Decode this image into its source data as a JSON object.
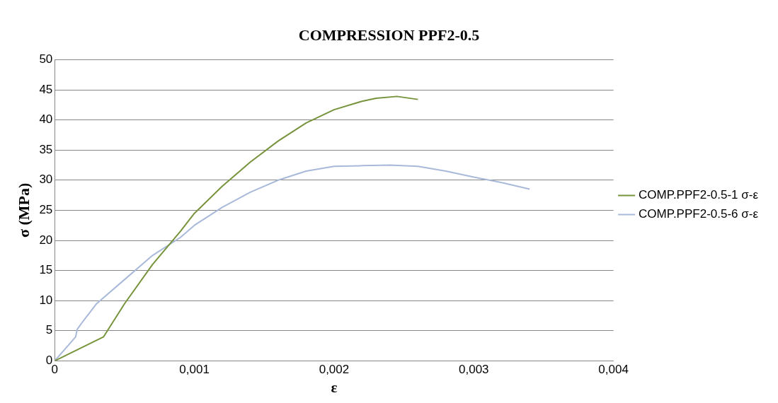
{
  "chart_data": {
    "type": "line",
    "title": "COMPRESSION PPF2-0.5",
    "xlabel": "ε",
    "ylabel": "σ (MPa)",
    "series": [
      {
        "name": "COMP.PPF2-0.5-1 σ-ε",
        "color": "#77933c",
        "x": [
          0,
          0.00035,
          0.0005,
          0.0007,
          0.0009,
          0.001,
          0.0012,
          0.0014,
          0.0016,
          0.0018,
          0.002,
          0.0022,
          0.0023,
          0.00245,
          0.0026
        ],
        "values": [
          0,
          4,
          9.5,
          16,
          21.5,
          24.5,
          29,
          33,
          36.5,
          39.5,
          41.7,
          43.1,
          43.6,
          43.9,
          43.4
        ]
      },
      {
        "name": "COMP.PPF2-0.5-6 σ-ε",
        "color": "#a9b9d9",
        "x": [
          0,
          0.00015,
          0.00016,
          0.0002,
          0.0003,
          0.0005,
          0.0007,
          0.0009,
          0.001,
          0.0012,
          0.0014,
          0.0016,
          0.0018,
          0.002,
          0.0022,
          0.0024,
          0.0026,
          0.0028,
          0.003,
          0.0032,
          0.0034
        ],
        "values": [
          0,
          4,
          5.2,
          6.5,
          9.5,
          13.5,
          17.5,
          20.5,
          22.5,
          25.5,
          28,
          30,
          31.5,
          32.3,
          32.4,
          32.5,
          32.3,
          31.5,
          30.5,
          29.6,
          28.5
        ]
      }
    ],
    "xlim": [
      0,
      0.004
    ],
    "xticks": [
      0,
      {
        "value": 0.001,
        "label": "0,001"
      },
      {
        "value": 0.002,
        "label": "0,002"
      },
      {
        "value": 0.003,
        "label": "0,003"
      },
      {
        "value": 0.004,
        "label": "0,004"
      }
    ],
    "ylim": [
      0,
      50
    ],
    "yticks": [
      0,
      5,
      10,
      15,
      20,
      25,
      30,
      35,
      40,
      45,
      50
    ],
    "grid": "y",
    "legend": "right",
    "marker": "none",
    "line_style": "solid"
  }
}
